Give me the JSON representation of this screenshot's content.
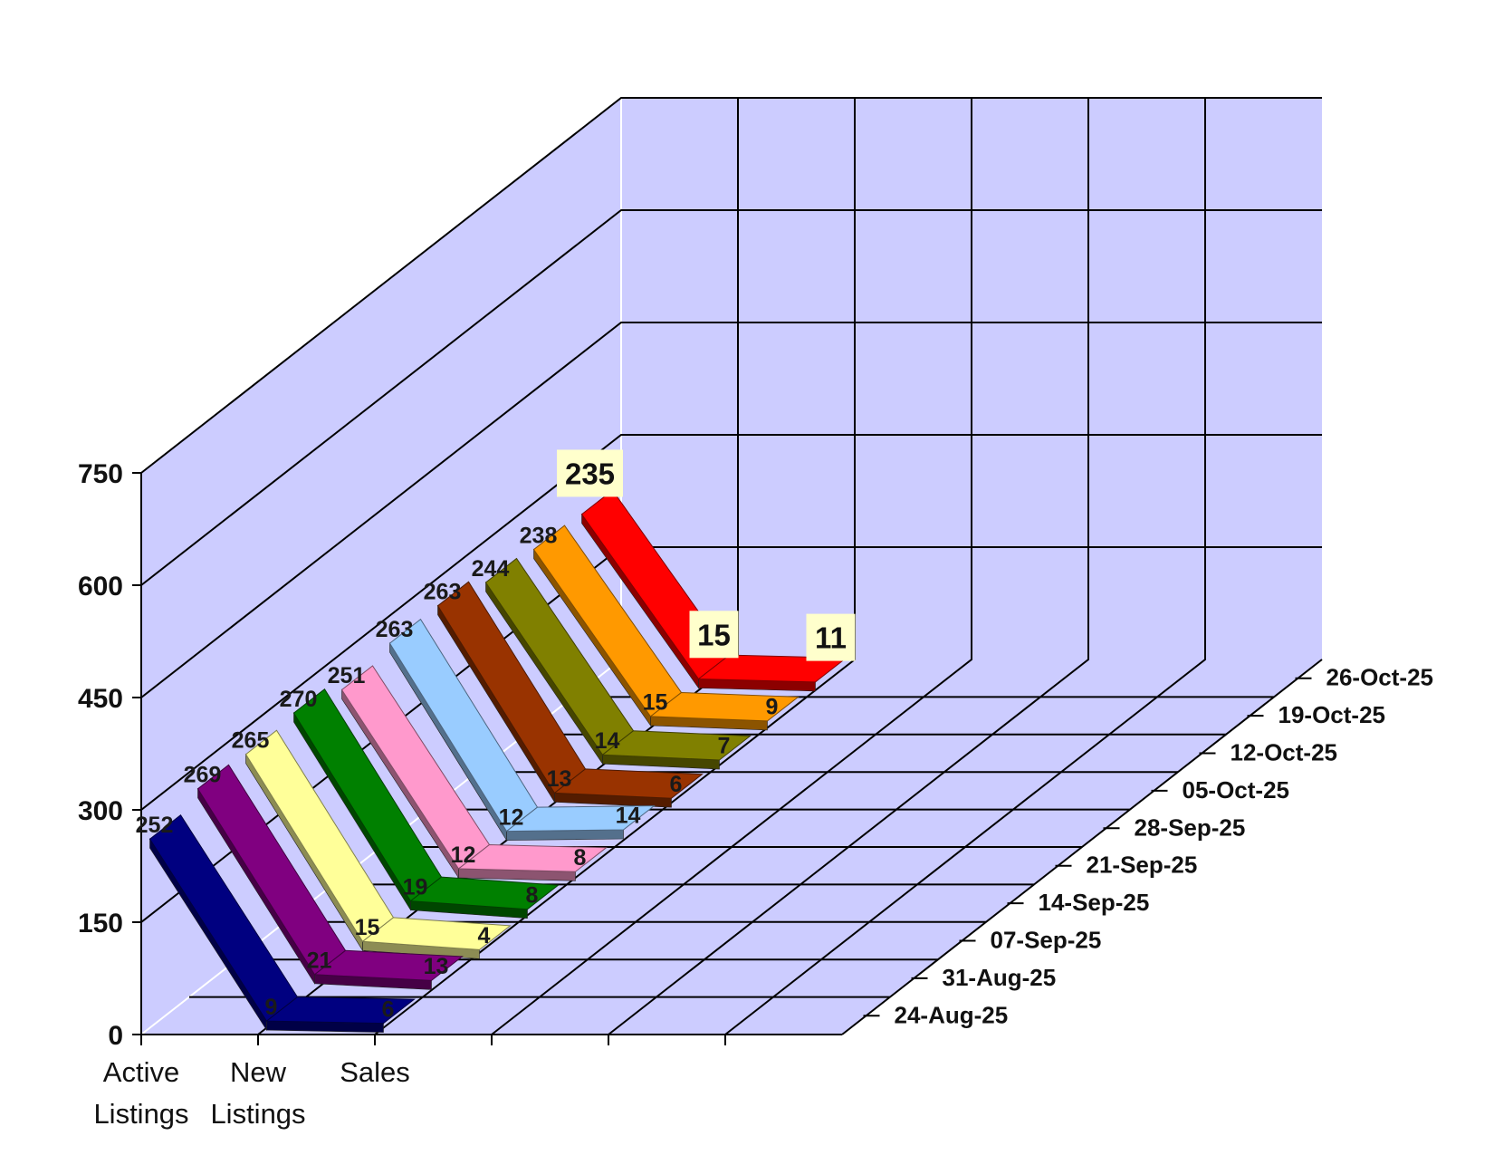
{
  "chart_data": {
    "type": "line",
    "style": "3d-ribbon",
    "categories": [
      "Active\nListings",
      "New\nListings",
      "Sales"
    ],
    "y_ticks": [
      "0",
      "150",
      "300",
      "450",
      "600",
      "750"
    ],
    "ylim": [
      0,
      750
    ],
    "grid": true,
    "series": [
      {
        "name": "24-Aug-25",
        "values": [
          252,
          9,
          6
        ],
        "color": "#000080"
      },
      {
        "name": "31-Aug-25",
        "values": [
          269,
          21,
          13
        ],
        "color": "#800080"
      },
      {
        "name": "07-Sep-25",
        "values": [
          265,
          15,
          4
        ],
        "color": "#FFFF99"
      },
      {
        "name": "14-Sep-25",
        "values": [
          270,
          19,
          8
        ],
        "color": "#008000"
      },
      {
        "name": "21-Sep-25",
        "values": [
          251,
          12,
          8
        ],
        "color": "#FF99CC"
      },
      {
        "name": "28-Sep-25",
        "values": [
          263,
          12,
          14
        ],
        "color": "#99CCFF"
      },
      {
        "name": "05-Oct-25",
        "values": [
          263,
          13,
          6
        ],
        "color": "#993300"
      },
      {
        "name": "12-Oct-25",
        "values": [
          244,
          14,
          7
        ],
        "color": "#808000"
      },
      {
        "name": "19-Oct-25",
        "values": [
          238,
          15,
          9
        ],
        "color": "#FF9900"
      },
      {
        "name": "26-Oct-25",
        "values": [
          235,
          15,
          11
        ],
        "color": "#FF0000"
      }
    ],
    "colors": {
      "wall": "#CCCCFF",
      "grid": "#000000",
      "label_box": "#FFFFCC"
    }
  }
}
